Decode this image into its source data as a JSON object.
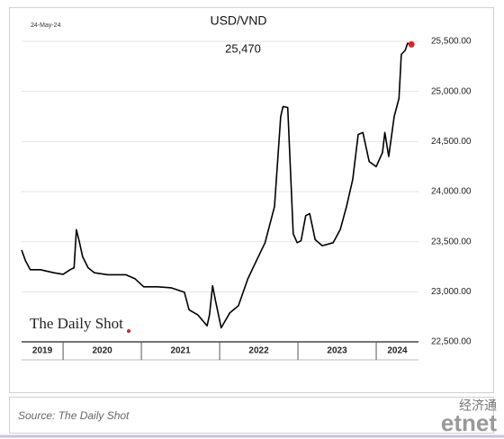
{
  "chart_data": {
    "type": "line",
    "title": "USD/VND",
    "date": "24-May-24",
    "x": [
      2019.47,
      2019.52,
      2019.58,
      2019.71,
      2019.88,
      2020.0,
      2020.09,
      2020.14,
      2020.17,
      2020.21,
      2020.25,
      2020.32,
      2020.4,
      2020.57,
      2020.8,
      2020.92,
      2021.03,
      2021.21,
      2021.38,
      2021.55,
      2021.61,
      2021.72,
      2021.84,
      2021.87,
      2021.91,
      2021.95,
      2022.02,
      2022.13,
      2022.24,
      2022.36,
      2022.47,
      2022.58,
      2022.7,
      2022.78,
      2022.81,
      2022.87,
      2022.91,
      2022.94,
      2022.99,
      2023.04,
      2023.1,
      2023.15,
      2023.22,
      2023.31,
      2023.45,
      2023.54,
      2023.62,
      2023.7,
      2023.77,
      2023.83,
      2023.91,
      2024.0,
      2024.08,
      2024.11,
      2024.16,
      2024.23,
      2024.29,
      2024.32,
      2024.37,
      2024.4,
      2024.45
    ],
    "series": [
      {
        "name": "USD/VND",
        "color": "#000000",
        "marker_color": "#e02020",
        "values": [
          23417,
          23310,
          23220,
          23220,
          23190,
          23175,
          23220,
          23240,
          23620,
          23490,
          23350,
          23240,
          23190,
          23170,
          23170,
          23130,
          23050,
          23050,
          23040,
          22995,
          22820,
          22770,
          22660,
          22770,
          23060,
          22900,
          22640,
          22790,
          22860,
          23130,
          23310,
          23490,
          23850,
          24750,
          24850,
          24840,
          24120,
          23580,
          23490,
          23510,
          23760,
          23780,
          23520,
          23460,
          23490,
          23620,
          23850,
          24120,
          24570,
          24590,
          24300,
          24250,
          24390,
          24590,
          24350,
          24750,
          24930,
          25370,
          25410,
          25480,
          25470
        ],
        "value_labels": [
          null,
          null,
          null,
          null,
          null,
          null,
          null,
          null,
          null,
          null,
          null,
          null,
          null,
          null,
          null,
          null,
          null,
          null,
          null,
          null,
          null,
          null,
          null,
          null,
          null,
          null,
          null,
          null,
          null,
          null,
          null,
          null,
          null,
          null,
          null,
          null,
          null,
          null,
          null,
          null,
          null,
          null,
          null,
          null,
          null,
          null,
          null,
          null,
          null,
          null,
          null,
          null,
          null,
          null,
          null,
          null,
          null,
          null,
          null,
          null,
          "25,470"
        ]
      }
    ],
    "xlim": [
      2019.47,
      2024.54
    ],
    "xticks": [
      2020,
      2021,
      2022,
      2023,
      2024
    ],
    "periods": [
      "2019",
      "2020",
      "2021",
      "2022",
      "2023",
      "2024"
    ],
    "ylim": [
      22500,
      25500
    ],
    "yticks": [
      {
        "value": 22500,
        "label": "22,500.00"
      },
      {
        "value": 23000,
        "label": "23,000.00"
      },
      {
        "value": 23500,
        "label": "23,500.00"
      },
      {
        "value": 24000,
        "label": "24,000.00"
      },
      {
        "value": 24500,
        "label": "24,500.00"
      },
      {
        "value": 25000,
        "label": "25,000.00"
      },
      {
        "value": 25500,
        "label": "25,500.00"
      }
    ],
    "grid": true,
    "logo": "The Daily Shot",
    "source": "Source: The Daily Shot"
  },
  "watermark": {
    "chinese": "经济通",
    "latin": "etnet"
  }
}
